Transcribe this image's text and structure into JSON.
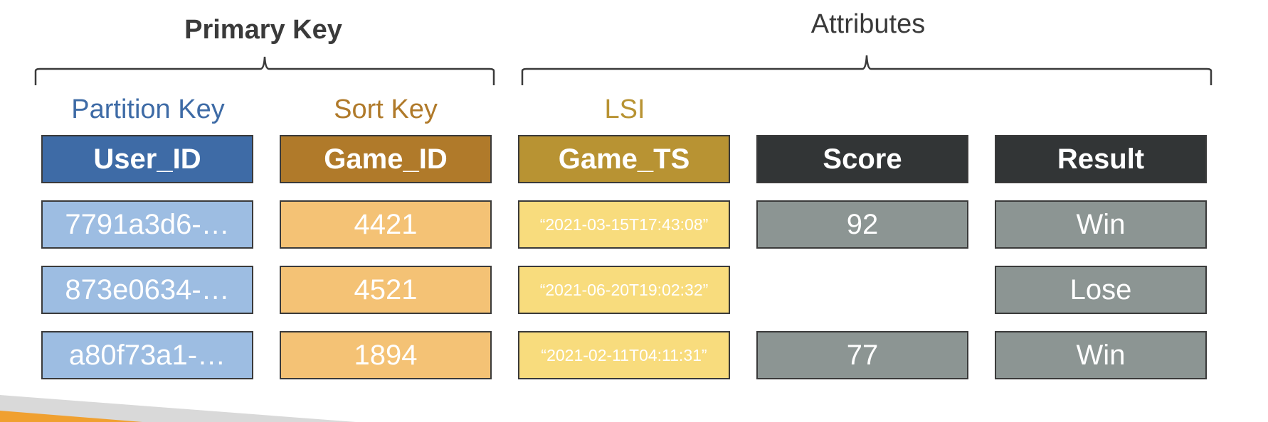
{
  "groups": {
    "primary_key": "Primary Key",
    "attributes": "Attributes"
  },
  "column_labels": {
    "partition_key": "Partition Key",
    "sort_key": "Sort Key",
    "lsi": "LSI"
  },
  "colors": {
    "partition_key": "#3e6ba6",
    "sort_key": "#b07a2a",
    "lsi": "#b89333",
    "attr_header": "#323536",
    "user_cell": "#9dbde2",
    "game_cell": "#f4c275",
    "ts_cell": "#f8dc7d",
    "attr_cell": "#8c9593"
  },
  "table": {
    "headers": [
      "User_ID",
      "Game_ID",
      "Game_TS",
      "Score",
      "Result"
    ],
    "rows": [
      {
        "user_id": "7791a3d6-…",
        "game_id": "4421",
        "game_ts": "“2021-03-15T17:43:08”",
        "score": "92",
        "result": "Win"
      },
      {
        "user_id": "873e0634-…",
        "game_id": "4521",
        "game_ts": "“2021-06-20T19:02:32”",
        "score": "",
        "result": "Lose"
      },
      {
        "user_id": "a80f73a1-…",
        "game_id": "1894",
        "game_ts": "“2021-02-11T04:11:31”",
        "score": "77",
        "result": "Win"
      }
    ]
  }
}
